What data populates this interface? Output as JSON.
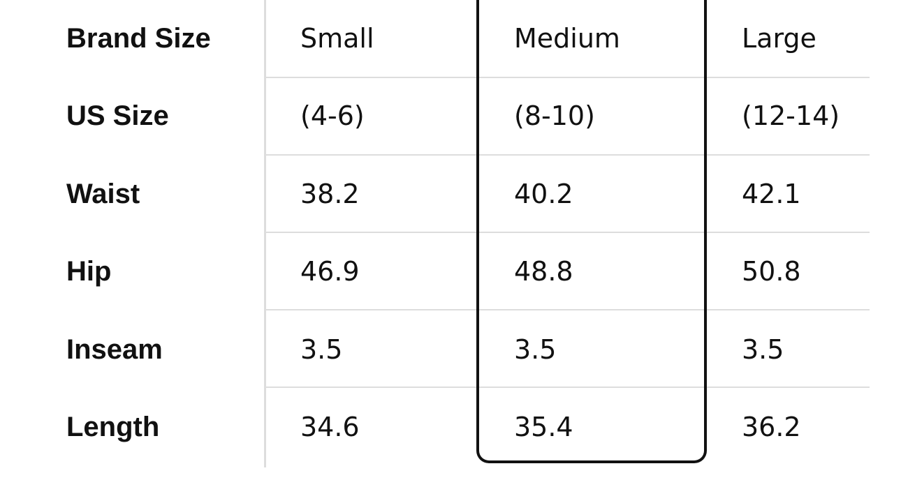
{
  "table": {
    "columns": [
      "Brand Size",
      "Small",
      "Medium",
      "Large"
    ],
    "rows": [
      [
        "US Size",
        "(4-6)",
        "(8-10)",
        "(12-14)"
      ],
      [
        "Waist",
        38.2,
        40.2,
        42.1
      ],
      [
        "Hip",
        46.9,
        48.8,
        50.8
      ],
      [
        "Inseam",
        3.5,
        3.5,
        3.5
      ],
      [
        "Length",
        34.6,
        35.4,
        36.2
      ]
    ]
  }
}
